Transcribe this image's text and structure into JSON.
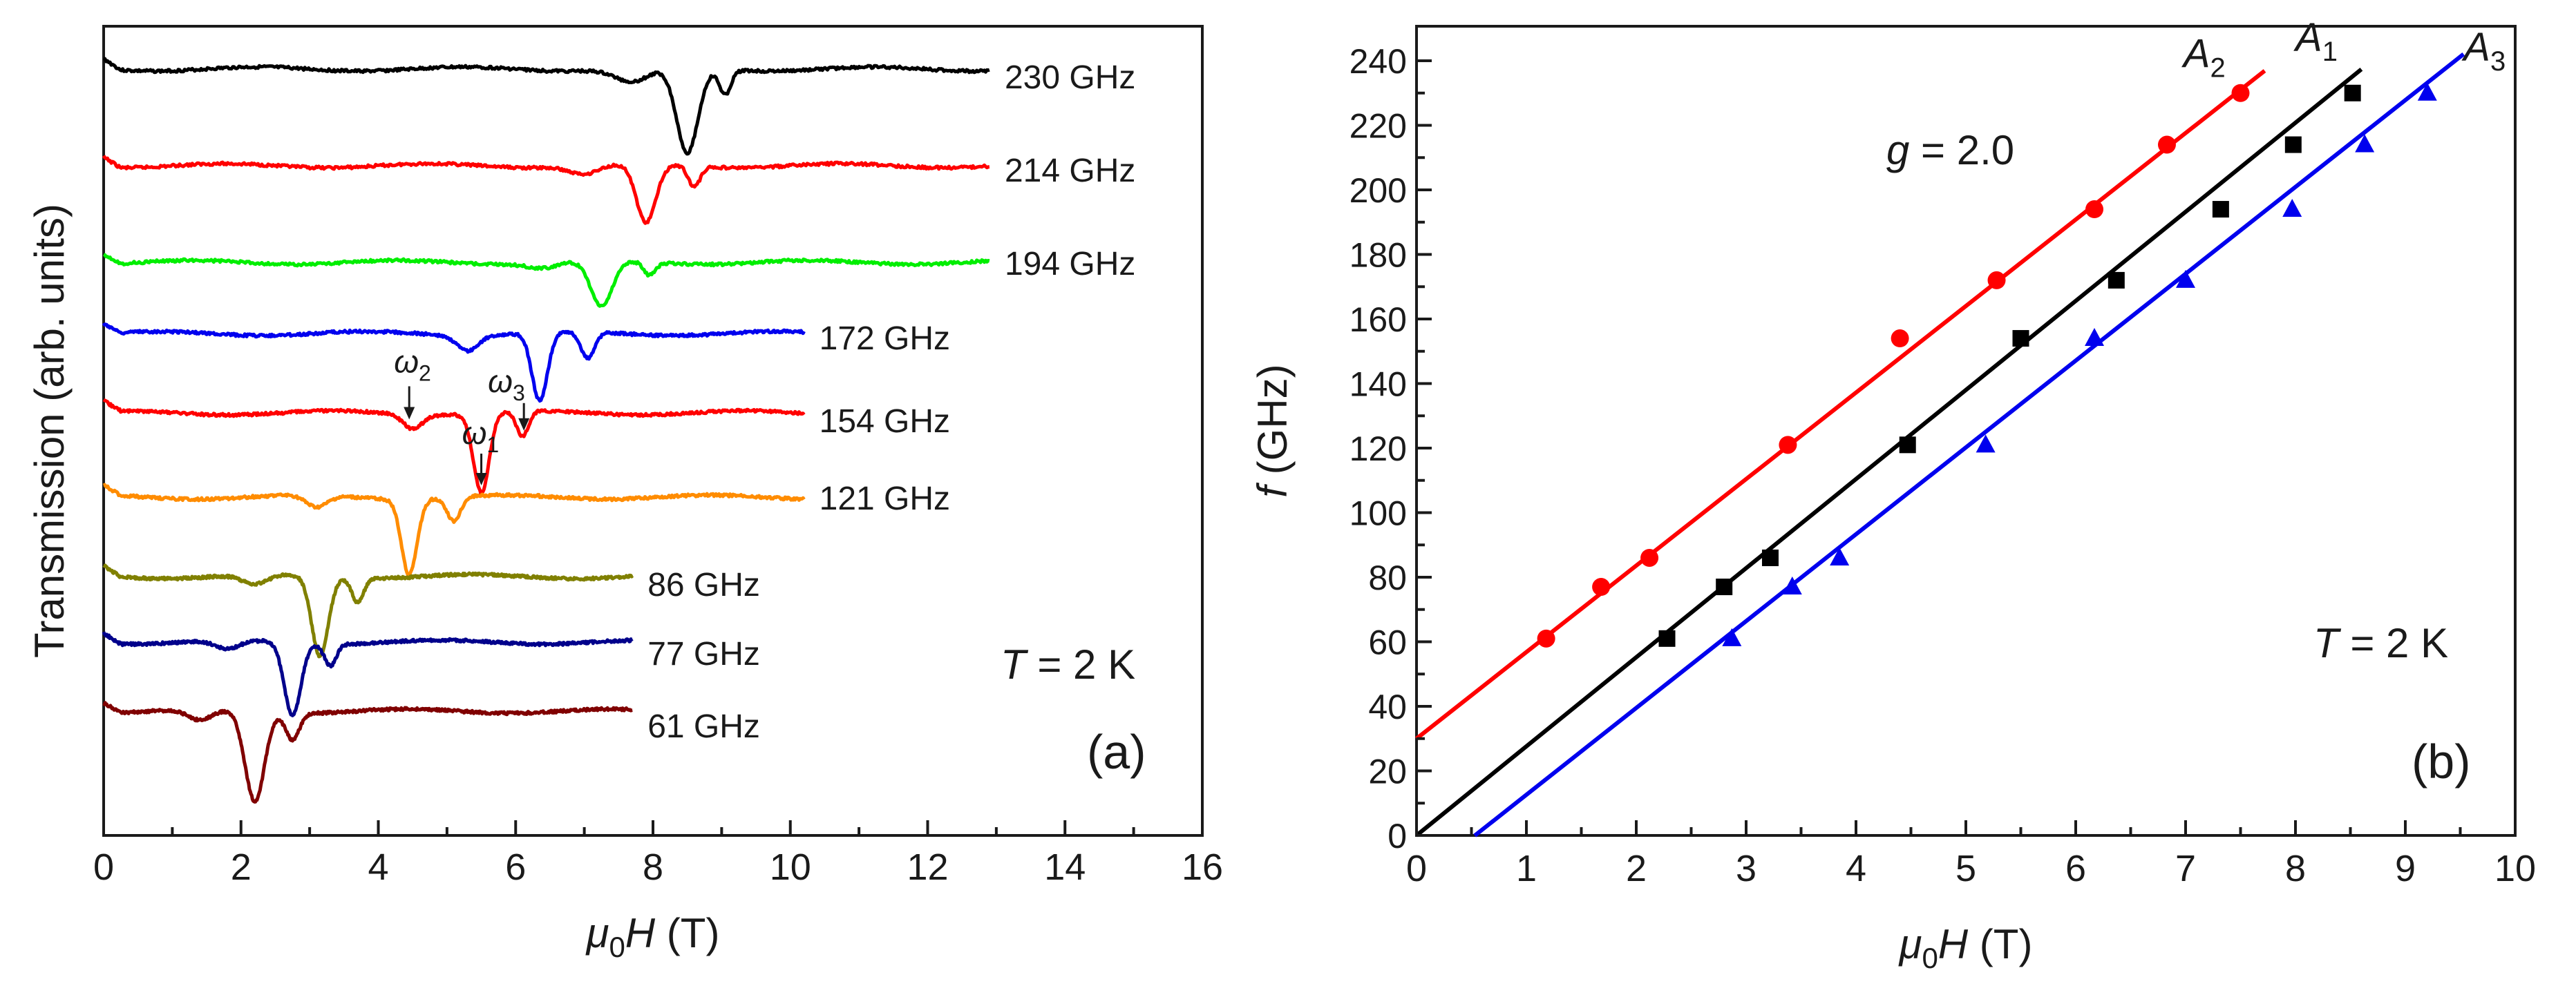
{
  "chart_data": [
    {
      "panel": "(a)",
      "type": "line",
      "xlabel_prefix": "μ",
      "xlabel_sub": "0",
      "xlabel_var": "H",
      "xlabel_unit": " (T)",
      "ylabel": "Transmission (arb. units)",
      "xlim": [
        0,
        16
      ],
      "x_ticks": [
        "0",
        "2",
        "4",
        "6",
        "8",
        "10",
        "12",
        "14",
        "16"
      ],
      "temperature_var": "T",
      "temperature_text": " = 2 K",
      "series": [
        {
          "name": "230 GHz",
          "color": "#000000",
          "xmax": 12.9,
          "dips": [
            {
              "x": 8.5,
              "depth": 0.95,
              "w": 0.22
            },
            {
              "x": 9.05,
              "depth": 0.28,
              "w": 0.12
            },
            {
              "x": 7.7,
              "depth": 0.15,
              "w": 0.35
            }
          ]
        },
        {
          "name": "214 GHz",
          "color": "#ff0000",
          "xmax": 12.9,
          "dips": [
            {
              "x": 7.9,
              "depth": 0.85,
              "w": 0.2
            },
            {
              "x": 8.6,
              "depth": 0.3,
              "w": 0.12
            },
            {
              "x": 7.0,
              "depth": 0.12,
              "w": 0.3
            }
          ]
        },
        {
          "name": "194 GHz",
          "color": "#00ee00",
          "xmax": 12.9,
          "dips": [
            {
              "x": 7.25,
              "depth": 0.7,
              "w": 0.22
            },
            {
              "x": 7.95,
              "depth": 0.2,
              "w": 0.12
            },
            {
              "x": 6.4,
              "depth": 0.08,
              "w": 0.3
            }
          ]
        },
        {
          "name": "172 GHz",
          "color": "#0000ee",
          "xmax": 10.2,
          "dips": [
            {
              "x": 6.35,
              "depth": 0.9,
              "w": 0.16
            },
            {
              "x": 7.05,
              "depth": 0.35,
              "w": 0.14
            },
            {
              "x": 5.3,
              "depth": 0.2,
              "w": 0.22
            }
          ]
        },
        {
          "name": "154 GHz",
          "color": "#ff0000",
          "xmax": 10.2,
          "dips": [
            {
              "x": 5.5,
              "depth": 1.0,
              "w": 0.16
            },
            {
              "x": 6.1,
              "depth": 0.32,
              "w": 0.12
            },
            {
              "x": 4.5,
              "depth": 0.18,
              "w": 0.2
            }
          ]
        },
        {
          "name": "121 GHz",
          "color": "#ff8c00",
          "xmax": 10.2,
          "dips": [
            {
              "x": 4.45,
              "depth": 0.95,
              "w": 0.16
            },
            {
              "x": 5.1,
              "depth": 0.3,
              "w": 0.14
            },
            {
              "x": 3.1,
              "depth": 0.15,
              "w": 0.22
            }
          ]
        },
        {
          "name": "86 GHz",
          "color": "#808000",
          "xmax": 7.7,
          "dips": [
            {
              "x": 3.15,
              "depth": 1.0,
              "w": 0.17
            },
            {
              "x": 3.7,
              "depth": 0.3,
              "w": 0.12
            },
            {
              "x": 2.2,
              "depth": 0.12,
              "w": 0.25
            }
          ]
        },
        {
          "name": "77 GHz",
          "color": "#00008b",
          "xmax": 7.7,
          "dips": [
            {
              "x": 2.75,
              "depth": 1.0,
              "w": 0.17
            },
            {
              "x": 3.3,
              "depth": 0.3,
              "w": 0.12
            },
            {
              "x": 1.8,
              "depth": 0.12,
              "w": 0.25
            }
          ]
        },
        {
          "name": "61 GHz",
          "color": "#800000",
          "xmax": 7.7,
          "dips": [
            {
              "x": 2.2,
              "depth": 1.0,
              "w": 0.2
            },
            {
              "x": 2.75,
              "depth": 0.3,
              "w": 0.14
            },
            {
              "x": 1.4,
              "depth": 0.12,
              "w": 0.25
            }
          ]
        }
      ],
      "annotations": [
        {
          "label": "ω",
          "sub": "2",
          "series": "154 GHz",
          "x": 4.45
        },
        {
          "label": "ω",
          "sub": "1",
          "series": "154 GHz",
          "x": 5.5
        },
        {
          "label": "ω",
          "sub": "3",
          "series": "154 GHz",
          "x": 6.12
        }
      ]
    },
    {
      "panel": "(b)",
      "type": "scatter",
      "xlabel_prefix": "μ",
      "xlabel_sub": "0",
      "xlabel_var": "H",
      "xlabel_unit": " (T)",
      "ylabel_var": "f",
      "ylabel_unit": " (GHz)",
      "xlim": [
        0,
        10
      ],
      "ylim": [
        0,
        240
      ],
      "x_ticks": [
        "0",
        "1",
        "2",
        "3",
        "4",
        "5",
        "6",
        "7",
        "8",
        "9",
        "10"
      ],
      "y_ticks": [
        "0",
        "20",
        "40",
        "60",
        "80",
        "100",
        "120",
        "140",
        "160",
        "180",
        "200",
        "220",
        "240"
      ],
      "g_var": "g",
      "g_text": " = 2.0",
      "temperature_var": "T",
      "temperature_text": " = 2 K",
      "series": [
        {
          "name": "A",
          "sub": "2",
          "color": "#ff0000",
          "marker": "circle",
          "x": [
            1.18,
            1.68,
            2.12,
            3.38,
            4.4,
            5.28,
            6.17,
            6.83,
            7.5
          ],
          "y": [
            61,
            77,
            86,
            121,
            154,
            172,
            194,
            214,
            230
          ],
          "fit": {
            "slope": 26.8,
            "intercept": 30,
            "x_range": [
              0,
              7.72
            ]
          }
        },
        {
          "name": "A",
          "sub": "1",
          "color": "#000000",
          "marker": "square",
          "x": [
            2.28,
            2.8,
            3.22,
            4.47,
            5.5,
            6.37,
            7.32,
            7.98,
            8.52
          ],
          "y": [
            61,
            77,
            86,
            121,
            154,
            172,
            194,
            214,
            230
          ],
          "fit": {
            "slope": 27.6,
            "intercept": 0,
            "x_range": [
              0,
              8.6
            ]
          }
        },
        {
          "name": "A",
          "sub": "3",
          "color": "#0000ee",
          "marker": "triangle",
          "x": [
            2.87,
            3.42,
            3.85,
            5.18,
            6.17,
            7.0,
            7.97,
            8.63,
            9.2
          ],
          "y": [
            61,
            77,
            86,
            121,
            154,
            172,
            194,
            214,
            230
          ],
          "fit": {
            "slope": 26.9,
            "intercept": -14.3,
            "x_range": [
              0.53,
              9.53
            ]
          }
        }
      ]
    }
  ]
}
